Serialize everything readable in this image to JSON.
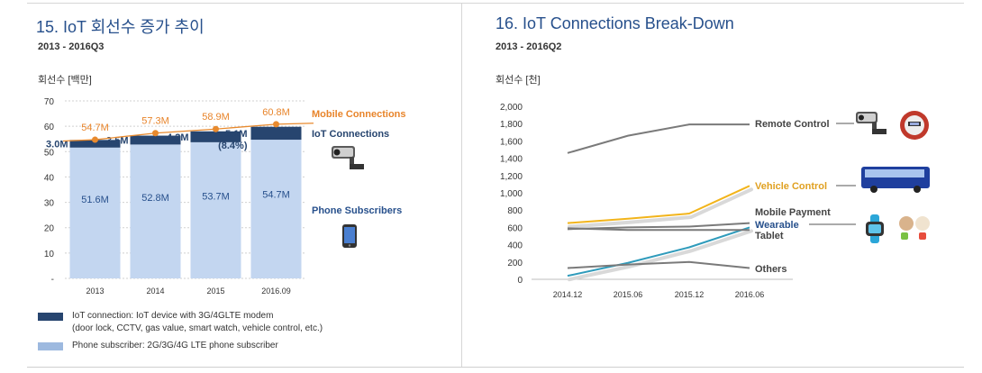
{
  "left_panel": {
    "title": "15. IoT 회선수 증가 추이",
    "subtitle": "2013 - 2016Q3",
    "unit_label": "회선수 [백만]",
    "legend": [
      {
        "line1": "IoT connection: IoT device with 3G/4GLTE modem",
        "line2": "(door lock, CCTV, gas value, smart watch, vehicle control, etc.)",
        "color": "#27456f"
      },
      {
        "line1": "Phone subscriber: 2G/3G/4G LTE phone subscriber",
        "line2": "",
        "color": "#9db9df"
      }
    ],
    "icons": [
      "cctv-camera-icon",
      "smartphone-icon"
    ]
  },
  "right_panel": {
    "title": "16. IoT Connections Break-Down",
    "subtitle": "2013 - 2016Q2",
    "unit_label": "회선수 [천]",
    "icons": [
      "cctv-camera-icon",
      "meter-icon",
      "bus-icon",
      "smartwatch-icon",
      "pets-icon"
    ]
  },
  "chart_data": [
    {
      "type": "bar",
      "stacked": true,
      "categories": [
        "2013",
        "2014",
        "2015",
        "2016.09"
      ],
      "ylim": [
        0,
        70
      ],
      "yticks": [
        0,
        10,
        20,
        30,
        40,
        50,
        60,
        70
      ],
      "ytick_labels": [
        "-",
        "10",
        "20",
        "30",
        "40",
        "50",
        "60",
        "70"
      ],
      "grid": true,
      "series": [
        {
          "name": "Phone Subscribers",
          "values": [
            51.6,
            52.8,
            53.7,
            54.7
          ],
          "labels": [
            "51.6M",
            "52.8M",
            "53.7M",
            "54.7M"
          ],
          "color": "#c3d6f0",
          "label_color": "#27508c"
        },
        {
          "name": "IoT Connections",
          "values": [
            3.0,
            3.5,
            4.3,
            5.1
          ],
          "labels": [
            "3.0M",
            "3.5M",
            "4.3M",
            "5.1M"
          ],
          "note": "(8.4%)",
          "color": "#27456f",
          "label_color": "#27456f"
        },
        {
          "name": "Mobile Connections",
          "type": "line",
          "values": [
            54.7,
            57.3,
            58.9,
            60.8
          ],
          "labels": [
            "54.7M",
            "57.3M",
            "58.9M",
            "60.8M"
          ],
          "color": "#e88a2e",
          "label_color": "#e8842a"
        }
      ]
    },
    {
      "type": "line",
      "x": [
        "2014.12",
        "2015.06",
        "2015.12",
        "2016.06"
      ],
      "ylim": [
        0,
        2000
      ],
      "yticks": [
        0,
        200,
        400,
        600,
        800,
        1000,
        1200,
        1400,
        1600,
        1800,
        2000
      ],
      "ytick_labels": [
        "0",
        "200",
        "400",
        "600",
        "800",
        "1,000",
        "1,200",
        "1,400",
        "1,600",
        "1,800",
        "2,000"
      ],
      "grid": false,
      "series": [
        {
          "name": "Remote Control",
          "values": [
            1460,
            1660,
            1790,
            1790
          ],
          "color": "#7a7a7a",
          "label_color": "#444444"
        },
        {
          "name": "Vehicle Control",
          "values": [
            650,
            700,
            760,
            1080
          ],
          "color": "#f2b41b",
          "label_color": "#e0a020"
        },
        {
          "name": "Mobile Payment",
          "values": [
            580,
            600,
            610,
            650
          ],
          "color": "#7a7a7a",
          "label_color": "#444444"
        },
        {
          "name": "Wearable",
          "values": [
            40,
            190,
            370,
            600
          ],
          "color": "#2f9bbb",
          "label_color": "#27508c"
        },
        {
          "name": "Tablet",
          "values": [
            590,
            570,
            570,
            570
          ],
          "color": "#7a7a7a",
          "label_color": "#444444"
        },
        {
          "name": "Others",
          "values": [
            130,
            170,
            200,
            130
          ],
          "color": "#7a7a7a",
          "label_color": "#444444"
        }
      ]
    }
  ]
}
